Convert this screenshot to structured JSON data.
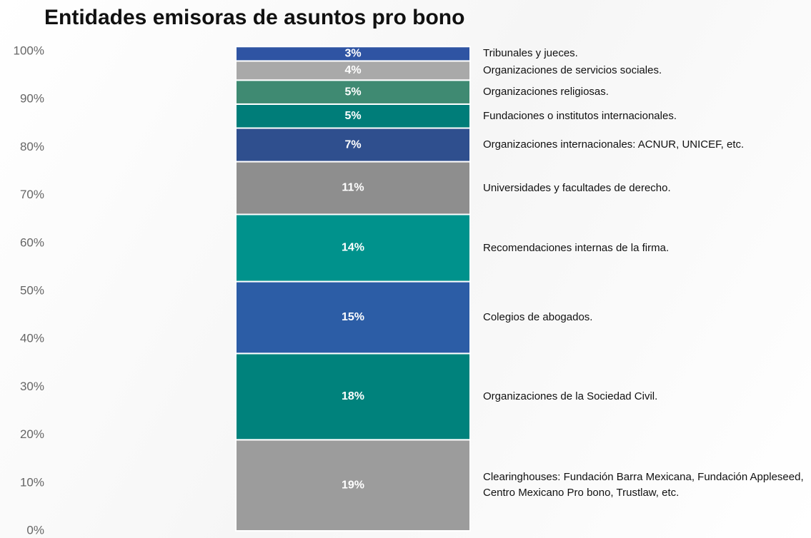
{
  "chart_data": {
    "type": "stacked_bar",
    "title": "Entidades emisoras de asuntos pro bono",
    "ylim": [
      0,
      100
    ],
    "yticks": [
      {
        "value": 0,
        "label": "0%"
      },
      {
        "value": 10,
        "label": "10%"
      },
      {
        "value": 20,
        "label": "20%"
      },
      {
        "value": 30,
        "label": "30%"
      },
      {
        "value": 40,
        "label": "40%"
      },
      {
        "value": 50,
        "label": "50%"
      },
      {
        "value": 60,
        "label": "60%"
      },
      {
        "value": 70,
        "label": "70%"
      },
      {
        "value": 80,
        "label": "80%"
      },
      {
        "value": 90,
        "label": "90%"
      },
      {
        "value": 100,
        "label": "100%"
      }
    ],
    "series": [
      {
        "name": "Clearinghouses: Fundación Barra Mexicana, Fundación Appleseed, Centro Mexicano Pro bono, Trustlaw, etc.",
        "color": "#9c9c9c",
        "values": [
          19
        ],
        "value_labels": [
          "19%"
        ]
      },
      {
        "name": "Organizaciones de la Sociedad Civil.",
        "color": "#00827c",
        "values": [
          18
        ],
        "value_labels": [
          "18%"
        ]
      },
      {
        "name": "Colegios de abogados.",
        "color": "#2c5da6",
        "values": [
          15
        ],
        "value_labels": [
          "15%"
        ]
      },
      {
        "name": "Recomendaciones internas de la firma.",
        "color": "#00928c",
        "values": [
          14
        ],
        "value_labels": [
          "14%"
        ]
      },
      {
        "name": "Universidades y facultades de derecho.",
        "color": "#8e8e8e",
        "values": [
          11
        ],
        "value_labels": [
          "11%"
        ]
      },
      {
        "name": "Organizaciones internacionales: ACNUR, UNICEF, etc.",
        "color": "#2f4f8e",
        "values": [
          7
        ],
        "value_labels": [
          "7%"
        ]
      },
      {
        "name": "Fundaciones o institutos internacionales.",
        "color": "#007d79",
        "values": [
          5
        ],
        "value_labels": [
          "5%"
        ]
      },
      {
        "name": "Organizaciones religiosas.",
        "color": "#3f8a72",
        "values": [
          5
        ],
        "value_labels": [
          "5%"
        ]
      },
      {
        "name": "Organizaciones de servicios sociales.",
        "color": "#a9a9a9",
        "values": [
          4
        ],
        "value_labels": [
          "4%"
        ]
      },
      {
        "name": "Tribunales y jueces.",
        "color": "#2f54a3",
        "values": [
          3
        ],
        "value_labels": [
          "3%"
        ]
      }
    ]
  }
}
